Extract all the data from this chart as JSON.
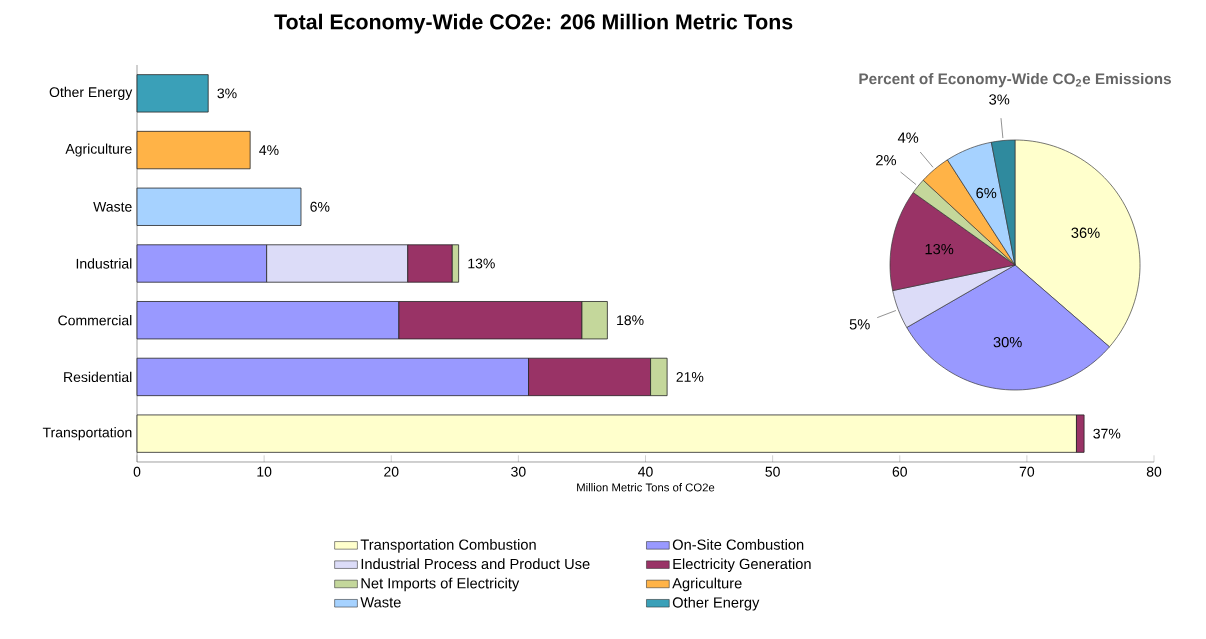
{
  "chart_data": [
    {
      "type": "bar",
      "orientation": "horizontal",
      "stacked": true,
      "title": "Total Economy-Wide CO2e:  206 Million Metric Tons",
      "xlabel": "Million Metric Tons of CO2e",
      "categories": [
        "Other Energy",
        "Agriculture",
        "Waste",
        "Industrial",
        "Commercial",
        "Residential",
        "Transportation"
      ],
      "xlim": [
        0,
        80
      ],
      "xticks": [
        0,
        10,
        20,
        30,
        40,
        50,
        60,
        70,
        80
      ],
      "legend": "bottom",
      "series": [
        {
          "name": "Transportation Combustion",
          "color": "#ffffcc",
          "values": [
            null,
            null,
            null,
            null,
            null,
            null,
            73.9
          ]
        },
        {
          "name": "On-Site Combustion",
          "color": "#9999ff",
          "values": [
            null,
            null,
            null,
            10.2,
            20.6,
            30.8,
            null
          ]
        },
        {
          "name": "Industrial Process and Product Use",
          "color": "#dcdcf8",
          "values": [
            null,
            null,
            null,
            11.1,
            null,
            null,
            null
          ]
        },
        {
          "name": "Electricity Generation",
          "color": "#993366",
          "values": [
            null,
            null,
            null,
            3.5,
            14.4,
            9.6,
            0.6
          ]
        },
        {
          "name": "Net Imports of Electricity",
          "color": "#c4d79b",
          "values": [
            null,
            null,
            null,
            0.5,
            2.0,
            1.3,
            null
          ]
        },
        {
          "name": "Agriculture",
          "color": "#ffb347",
          "values": [
            null,
            8.9,
            null,
            null,
            null,
            null,
            null
          ]
        },
        {
          "name": "Waste",
          "color": "#a6d2ff",
          "values": [
            null,
            null,
            12.9,
            null,
            null,
            null,
            null
          ]
        },
        {
          "name": "Other Energy",
          "color": "#3aa0b8",
          "values": [
            5.6,
            null,
            null,
            null,
            null,
            null,
            null
          ]
        }
      ],
      "annotations": [
        {
          "text": "3%",
          "x": 5.6,
          "y": "Other Energy"
        },
        {
          "text": "4%",
          "x": 8.9,
          "y": "Agriculture"
        },
        {
          "text": "6%",
          "x": 12.9,
          "y": "Waste"
        },
        {
          "text": "13%",
          "x": 25.3,
          "y": "Industrial"
        },
        {
          "text": "18%",
          "x": 37.0,
          "y": "Commercial"
        },
        {
          "text": "21%",
          "x": 41.7,
          "y": "Residential"
        },
        {
          "text": "37%",
          "x": 74.5,
          "y": "Transportation"
        }
      ]
    },
    {
      "type": "pie",
      "title": "Percent of Economy-Wide CO$_{2}$e Emissions",
      "categories": [
        null,
        null,
        null,
        null,
        null,
        null,
        null,
        null
      ],
      "values": [
        36,
        30,
        5,
        13,
        2,
        4,
        6,
        3
      ],
      "colors": [
        "#ffffcc",
        "#9999ff",
        "#dcdcf8",
        "#993366",
        "#c4d79b",
        "#ffb347",
        "#a6d2ff",
        "#2f8a9e"
      ],
      "value_labels": [
        "36%",
        "30%",
        "5%",
        "13%",
        "2%",
        "4%",
        "6%",
        "3%"
      ]
    }
  ]
}
